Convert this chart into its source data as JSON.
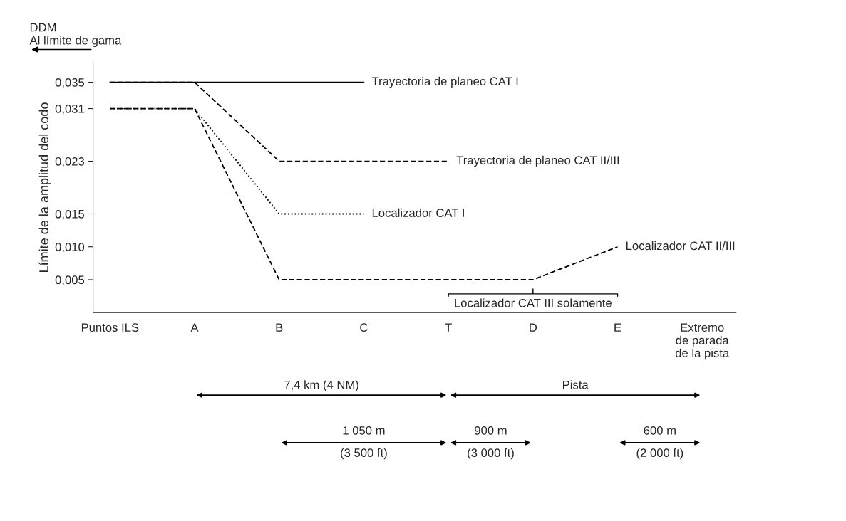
{
  "chart_data": {
    "type": "line",
    "ylabel": "Límite de la amplitud del codo",
    "categories": [
      "Puntos ILS",
      "A",
      "B",
      "C",
      "T",
      "D",
      "E",
      "Extremo\nde parada\nde la pista"
    ],
    "ylim": [
      0,
      0.038
    ],
    "yticks": [
      {
        "value": 0.005,
        "label": "0,005"
      },
      {
        "value": 0.01,
        "label": "0,010"
      },
      {
        "value": 0.015,
        "label": "0,015"
      },
      {
        "value": 0.023,
        "label": "0,023"
      },
      {
        "value": 0.031,
        "label": "0,031"
      },
      {
        "value": 0.035,
        "label": "0,035"
      }
    ],
    "series": [
      {
        "name": "Trayectoria de planeo CAT I",
        "color": "#000000",
        "line_style": "solid",
        "values": [
          0.035,
          0.035,
          0.035,
          0.035,
          null,
          null,
          null,
          null
        ]
      },
      {
        "name": "Trayectoria de planeo CAT II/III",
        "color": "#000000",
        "line_style": "dashed",
        "values": [
          0.035,
          0.035,
          0.023,
          0.023,
          0.023,
          null,
          null,
          null
        ]
      },
      {
        "name": "Localizador CAT I",
        "color": "#000000",
        "line_style": "dotted",
        "values": [
          0.031,
          0.031,
          0.015,
          0.015,
          null,
          null,
          null,
          null
        ]
      },
      {
        "name": "Localizador CAT II/III",
        "color": "#000000",
        "line_style": "dashed",
        "values": [
          0.031,
          0.031,
          0.005,
          0.005,
          0.005,
          0.005,
          0.01,
          null
        ]
      }
    ],
    "annotations": [
      "DDM\nAl límite de gama",
      "Localizador CAT III solamente",
      "7,4 km (4 NM)",
      "Pista",
      "1 050 m\n(3 500 ft)",
      "900 m\n(3 000 ft)",
      "600 m\n(2 000 ft)"
    ],
    "grid": false
  }
}
